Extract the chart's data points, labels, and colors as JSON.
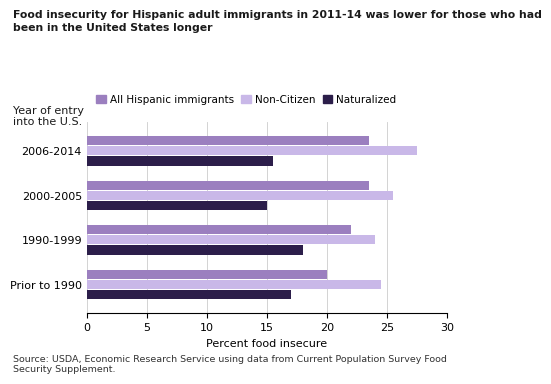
{
  "title_line1": "Food insecurity for Hispanic adult immigrants in 2011-14 was lower for those who had",
  "title_line2": "been in the United States longer",
  "ylabel_text": "Year of entry\ninto the U.S.",
  "xlabel": "Percent food insecure",
  "source": "Source: USDA, Economic Research Service using data from Current Population Survey Food\nSecurity Supplement.",
  "categories": [
    "2006-2014",
    "2000-2005",
    "1990-1999",
    "Prior to 1990"
  ],
  "series": {
    "All Hispanic immigrants": [
      23.5,
      23.5,
      22.0,
      20.0
    ],
    "Non-Citizen": [
      27.5,
      25.5,
      24.0,
      24.5
    ],
    "Naturalized": [
      15.5,
      15.0,
      18.0,
      17.0
    ]
  },
  "colors": {
    "All Hispanic immigrants": "#9B7FBF",
    "Non-Citizen": "#C9B8E8",
    "Naturalized": "#2C1E4A"
  },
  "legend_labels": [
    "All Hispanic immigrants",
    "Non-Citizen",
    "Naturalized"
  ],
  "xlim": [
    0,
    30
  ],
  "xticks": [
    0,
    5,
    10,
    15,
    20,
    25,
    30
  ],
  "bar_height": 0.23,
  "background_color": "#ffffff",
  "grid_color": "#cccccc"
}
